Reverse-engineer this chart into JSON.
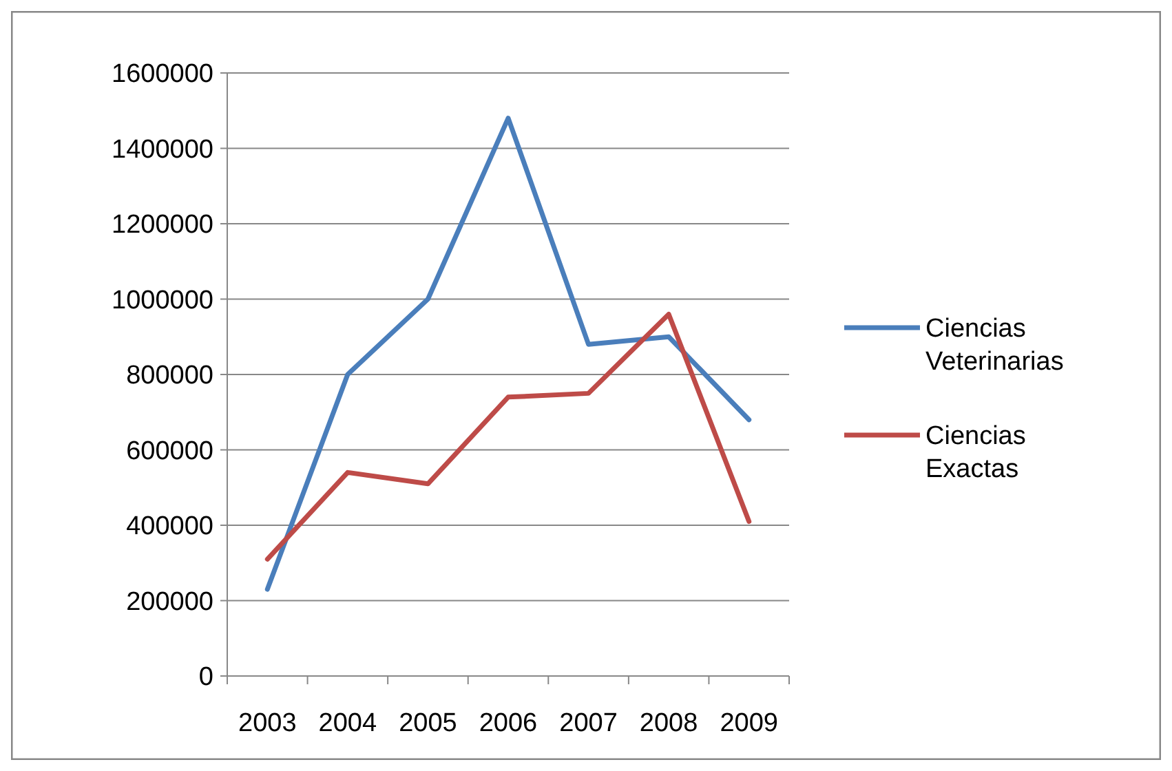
{
  "chart_data": {
    "type": "line",
    "categories": [
      "2003",
      "2004",
      "2005",
      "2006",
      "2007",
      "2008",
      "2009"
    ],
    "series": [
      {
        "name": "Ciencias Veterinarias",
        "color": "#4a7ebb",
        "values": [
          230000,
          800000,
          1000000,
          1480000,
          880000,
          900000,
          680000
        ]
      },
      {
        "name": "Ciencias Exactas",
        "color": "#be4b48",
        "values": [
          310000,
          540000,
          510000,
          740000,
          750000,
          960000,
          410000
        ]
      }
    ],
    "ylim": [
      0,
      1600000
    ],
    "yticks": [
      0,
      200000,
      400000,
      600000,
      800000,
      1000000,
      1200000,
      1400000,
      1600000
    ],
    "grid": "y",
    "legend": "right",
    "marker": "none",
    "line_style": "solid"
  }
}
